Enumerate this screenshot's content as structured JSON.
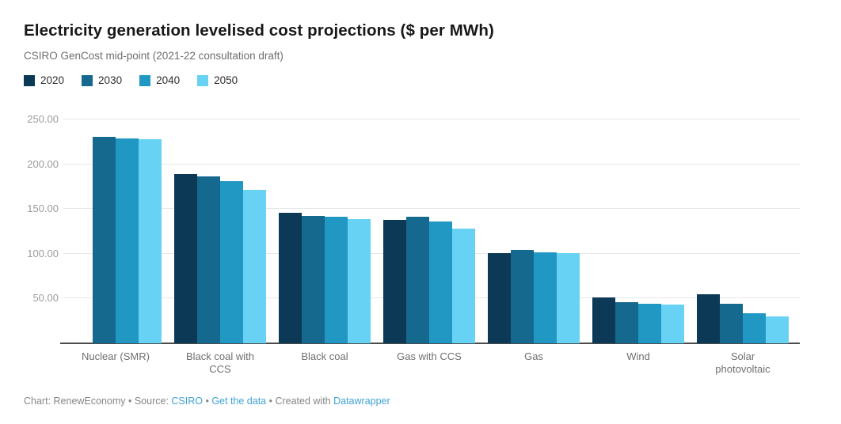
{
  "title": "Electricity generation levelised cost projections ($ per MWh)",
  "subtitle": "CSIRO GenCost mid-point (2021-22 consultation draft)",
  "footer": {
    "segments": [
      {
        "text": "Chart: RenewEconomy • Source: ",
        "link": false
      },
      {
        "text": "CSIRO",
        "link": true
      },
      {
        "text": " • ",
        "link": false
      },
      {
        "text": "Get the data",
        "link": true
      },
      {
        "text": " • Created with ",
        "link": false
      },
      {
        "text": "Datawrapper",
        "link": true
      }
    ]
  },
  "chart_data": {
    "type": "bar",
    "grouped": true,
    "title": "Electricity generation levelised cost projections ($ per MWh)",
    "subtitle": "CSIRO GenCost mid-point (2021-22 consultation draft)",
    "xlabel": "",
    "ylabel": "$ per MWh",
    "ylim": [
      0,
      250
    ],
    "grid": true,
    "legend_position": "top",
    "categories": [
      "Nuclear (SMR)",
      "Black coal with CCS",
      "Black coal",
      "Gas with CCS",
      "Gas",
      "Wind",
      "Solar photovoltaic"
    ],
    "series": [
      {
        "name": "2020",
        "color": "#0c3a56",
        "values": [
          null,
          189,
          146,
          138,
          101,
          51,
          55
        ]
      },
      {
        "name": "2030",
        "color": "#15688e",
        "values": [
          231,
          186,
          142,
          141,
          104,
          46,
          44
        ]
      },
      {
        "name": "2040",
        "color": "#2198c3",
        "values": [
          229,
          181,
          141,
          136,
          102,
          44,
          34
        ]
      },
      {
        "name": "2050",
        "color": "#67d2f3",
        "values": [
          228,
          171,
          139,
          128,
          101,
          43,
          30
        ]
      }
    ],
    "yticks": [
      {
        "value": 250,
        "label": "250.00"
      },
      {
        "value": 200,
        "label": "200.00"
      },
      {
        "value": 150,
        "label": "150.00"
      },
      {
        "value": 100,
        "label": "100.00"
      },
      {
        "value": 50,
        "label": "50.00"
      }
    ]
  }
}
